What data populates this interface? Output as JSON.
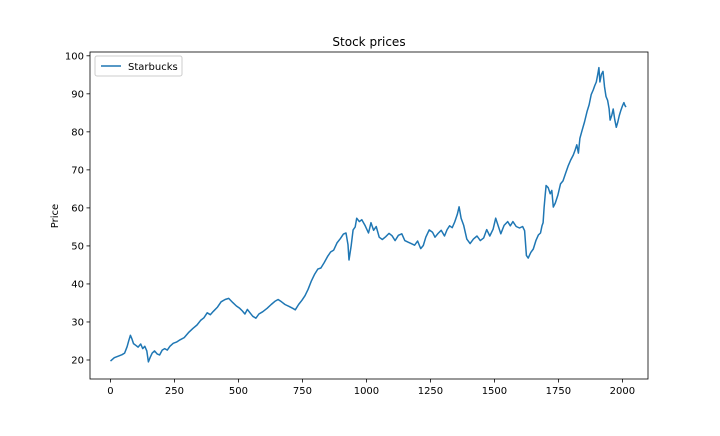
{
  "chart_data": {
    "type": "line",
    "title": "Stock prices",
    "xlabel": "",
    "ylabel": "Price",
    "xlim": [
      -80,
      2100
    ],
    "ylim": [
      15,
      101
    ],
    "x_ticks": [
      0,
      250,
      500,
      750,
      1000,
      1250,
      1500,
      1750,
      2000
    ],
    "y_ticks": [
      20,
      30,
      40,
      50,
      60,
      70,
      80,
      90,
      100
    ],
    "grid": false,
    "legend": "top-left",
    "series": [
      {
        "name": "Starbucks",
        "color": "#1f77b4",
        "points": [
          [
            0,
            19.7
          ],
          [
            15,
            20.6
          ],
          [
            30,
            21.0
          ],
          [
            45,
            21.4
          ],
          [
            55,
            21.8
          ],
          [
            65,
            23.5
          ],
          [
            72,
            25.2
          ],
          [
            78,
            26.5
          ],
          [
            84,
            25.5
          ],
          [
            90,
            24.3
          ],
          [
            98,
            23.9
          ],
          [
            108,
            23.4
          ],
          [
            118,
            24.2
          ],
          [
            126,
            23.0
          ],
          [
            134,
            23.6
          ],
          [
            142,
            22.4
          ],
          [
            148,
            19.5
          ],
          [
            155,
            20.7
          ],
          [
            163,
            21.8
          ],
          [
            172,
            22.4
          ],
          [
            182,
            21.6
          ],
          [
            192,
            21.3
          ],
          [
            202,
            22.6
          ],
          [
            212,
            23.0
          ],
          [
            222,
            22.6
          ],
          [
            232,
            23.6
          ],
          [
            245,
            24.4
          ],
          [
            258,
            24.7
          ],
          [
            272,
            25.3
          ],
          [
            288,
            25.9
          ],
          [
            305,
            27.2
          ],
          [
            322,
            28.3
          ],
          [
            338,
            29.2
          ],
          [
            352,
            30.4
          ],
          [
            365,
            31.1
          ],
          [
            378,
            32.4
          ],
          [
            390,
            31.9
          ],
          [
            402,
            32.8
          ],
          [
            418,
            33.9
          ],
          [
            432,
            35.3
          ],
          [
            448,
            35.9
          ],
          [
            462,
            36.2
          ],
          [
            478,
            35.1
          ],
          [
            492,
            34.2
          ],
          [
            505,
            33.6
          ],
          [
            515,
            32.9
          ],
          [
            525,
            32.1
          ],
          [
            535,
            33.3
          ],
          [
            545,
            32.4
          ],
          [
            556,
            31.5
          ],
          [
            568,
            31.0
          ],
          [
            580,
            32.1
          ],
          [
            595,
            32.7
          ],
          [
            612,
            33.6
          ],
          [
            628,
            34.6
          ],
          [
            642,
            35.4
          ],
          [
            655,
            35.9
          ],
          [
            668,
            35.3
          ],
          [
            682,
            34.6
          ],
          [
            698,
            34.1
          ],
          [
            712,
            33.6
          ],
          [
            722,
            33.2
          ],
          [
            735,
            34.6
          ],
          [
            748,
            35.7
          ],
          [
            760,
            36.9
          ],
          [
            772,
            38.6
          ],
          [
            785,
            40.8
          ],
          [
            798,
            42.6
          ],
          [
            810,
            43.9
          ],
          [
            822,
            44.2
          ],
          [
            835,
            45.6
          ],
          [
            848,
            47.2
          ],
          [
            860,
            48.4
          ],
          [
            872,
            48.9
          ],
          [
            885,
            50.8
          ],
          [
            898,
            51.9
          ],
          [
            910,
            53.1
          ],
          [
            920,
            53.4
          ],
          [
            928,
            50.3
          ],
          [
            932,
            46.3
          ],
          [
            940,
            49.9
          ],
          [
            948,
            54.2
          ],
          [
            956,
            55.0
          ],
          [
            962,
            57.3
          ],
          [
            972,
            56.4
          ],
          [
            982,
            56.9
          ],
          [
            995,
            55.3
          ],
          [
            1008,
            53.4
          ],
          [
            1018,
            56.1
          ],
          [
            1028,
            54.1
          ],
          [
            1038,
            55.1
          ],
          [
            1050,
            52.3
          ],
          [
            1062,
            51.7
          ],
          [
            1075,
            52.4
          ],
          [
            1088,
            53.3
          ],
          [
            1100,
            52.7
          ],
          [
            1112,
            51.4
          ],
          [
            1125,
            52.8
          ],
          [
            1138,
            53.2
          ],
          [
            1150,
            51.4
          ],
          [
            1162,
            51.0
          ],
          [
            1175,
            50.6
          ],
          [
            1188,
            50.2
          ],
          [
            1200,
            51.3
          ],
          [
            1212,
            49.3
          ],
          [
            1222,
            50.1
          ],
          [
            1232,
            52.3
          ],
          [
            1245,
            54.2
          ],
          [
            1258,
            53.6
          ],
          [
            1268,
            52.3
          ],
          [
            1280,
            53.3
          ],
          [
            1292,
            54.1
          ],
          [
            1305,
            52.6
          ],
          [
            1315,
            54.3
          ],
          [
            1325,
            55.3
          ],
          [
            1335,
            54.8
          ],
          [
            1345,
            56.3
          ],
          [
            1355,
            58.3
          ],
          [
            1362,
            60.3
          ],
          [
            1370,
            57.3
          ],
          [
            1380,
            55.4
          ],
          [
            1392,
            51.8
          ],
          [
            1405,
            50.6
          ],
          [
            1418,
            51.8
          ],
          [
            1432,
            52.6
          ],
          [
            1445,
            51.4
          ],
          [
            1458,
            52.1
          ],
          [
            1470,
            54.3
          ],
          [
            1482,
            52.6
          ],
          [
            1495,
            54.4
          ],
          [
            1505,
            57.3
          ],
          [
            1515,
            55.2
          ],
          [
            1525,
            53.2
          ],
          [
            1538,
            55.4
          ],
          [
            1552,
            56.4
          ],
          [
            1562,
            55.3
          ],
          [
            1572,
            56.4
          ],
          [
            1585,
            55.1
          ],
          [
            1598,
            54.7
          ],
          [
            1610,
            55.1
          ],
          [
            1618,
            54.0
          ],
          [
            1625,
            47.5
          ],
          [
            1632,
            46.8
          ],
          [
            1642,
            48.3
          ],
          [
            1652,
            49.2
          ],
          [
            1662,
            51.4
          ],
          [
            1672,
            52.9
          ],
          [
            1680,
            53.4
          ],
          [
            1686,
            55.3
          ],
          [
            1690,
            56.1
          ],
          [
            1694,
            60.1
          ],
          [
            1698,
            63.1
          ],
          [
            1702,
            65.9
          ],
          [
            1710,
            65.3
          ],
          [
            1718,
            63.7
          ],
          [
            1724,
            64.6
          ],
          [
            1730,
            60.2
          ],
          [
            1738,
            61.3
          ],
          [
            1748,
            63.4
          ],
          [
            1758,
            66.3
          ],
          [
            1768,
            67.1
          ],
          [
            1778,
            69.1
          ],
          [
            1788,
            71.0
          ],
          [
            1798,
            72.6
          ],
          [
            1808,
            73.9
          ],
          [
            1815,
            75.2
          ],
          [
            1822,
            76.6
          ],
          [
            1828,
            74.4
          ],
          [
            1834,
            78.3
          ],
          [
            1842,
            80.3
          ],
          [
            1852,
            82.6
          ],
          [
            1862,
            85.4
          ],
          [
            1870,
            87.1
          ],
          [
            1878,
            89.8
          ],
          [
            1886,
            91.0
          ],
          [
            1892,
            92.2
          ],
          [
            1898,
            93.1
          ],
          [
            1904,
            95.2
          ],
          [
            1908,
            96.9
          ],
          [
            1912,
            93.1
          ],
          [
            1918,
            95.1
          ],
          [
            1924,
            95.9
          ],
          [
            1930,
            91.9
          ],
          [
            1936,
            89.3
          ],
          [
            1942,
            88.3
          ],
          [
            1948,
            86.1
          ],
          [
            1952,
            83.1
          ],
          [
            1958,
            84.3
          ],
          [
            1964,
            86.0
          ],
          [
            1970,
            83.3
          ],
          [
            1976,
            81.2
          ],
          [
            1982,
            82.6
          ],
          [
            1988,
            84.3
          ],
          [
            1994,
            85.7
          ],
          [
            2000,
            86.8
          ],
          [
            2006,
            87.7
          ],
          [
            2010,
            86.9
          ],
          [
            2014,
            86.5
          ]
        ]
      }
    ]
  }
}
